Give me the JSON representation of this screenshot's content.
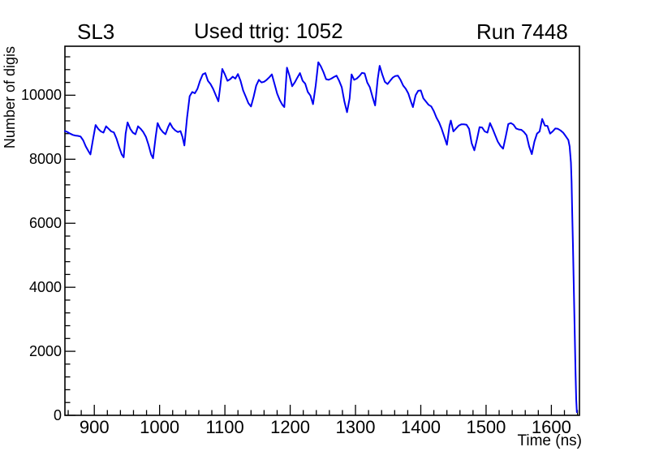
{
  "titles": {
    "left": "SL3",
    "center": "Used ttrig: 1052",
    "right": "Run 7448"
  },
  "chart_data": {
    "type": "line",
    "title": "Used ttrig: 1052",
    "subtitle_left": "SL3",
    "subtitle_right": "Run 7448",
    "xlabel": "Time (ns)",
    "ylabel": "Number of digis",
    "xlim": [
      855,
      1643
    ],
    "ylim": [
      0,
      11530
    ],
    "grid": false,
    "legend": "none",
    "x_major_ticks": [
      900,
      1000,
      1100,
      1200,
      1300,
      1400,
      1500,
      1600
    ],
    "x_major_every": 100,
    "x_minor_step": 20,
    "y_major_ticks": [
      0,
      2000,
      4000,
      6000,
      8000,
      10000
    ],
    "y_major_every": 2000,
    "y_minor_step": 400,
    "line_color": "#0000f2",
    "frame_color": "#000000",
    "series": [
      {
        "name": "number-of-digis-vs-time",
        "points": [
          [
            855,
            8880
          ],
          [
            859,
            8850
          ],
          [
            863,
            8800
          ],
          [
            867,
            8760
          ],
          [
            871,
            8740
          ],
          [
            875,
            8730
          ],
          [
            879,
            8710
          ],
          [
            883,
            8590
          ],
          [
            887,
            8400
          ],
          [
            891,
            8250
          ],
          [
            894,
            8150
          ],
          [
            898,
            8620
          ],
          [
            902,
            9070
          ],
          [
            906,
            8950
          ],
          [
            910,
            8870
          ],
          [
            914,
            8830
          ],
          [
            918,
            9030
          ],
          [
            922,
            8950
          ],
          [
            926,
            8870
          ],
          [
            930,
            8840
          ],
          [
            934,
            8640
          ],
          [
            938,
            8380
          ],
          [
            942,
            8150
          ],
          [
            945,
            8060
          ],
          [
            948,
            8800
          ],
          [
            951,
            9150
          ],
          [
            955,
            8950
          ],
          [
            959,
            8830
          ],
          [
            963,
            8780
          ],
          [
            967,
            9030
          ],
          [
            971,
            8950
          ],
          [
            975,
            8850
          ],
          [
            979,
            8700
          ],
          [
            983,
            8450
          ],
          [
            987,
            8150
          ],
          [
            990,
            8030
          ],
          [
            994,
            8700
          ],
          [
            997,
            9130
          ],
          [
            1001,
            8950
          ],
          [
            1005,
            8850
          ],
          [
            1009,
            8780
          ],
          [
            1013,
            9000
          ],
          [
            1016,
            9130
          ],
          [
            1020,
            8980
          ],
          [
            1024,
            8900
          ],
          [
            1028,
            8850
          ],
          [
            1032,
            8880
          ],
          [
            1035,
            8700
          ],
          [
            1038,
            8430
          ],
          [
            1042,
            9300
          ],
          [
            1046,
            9970
          ],
          [
            1050,
            10100
          ],
          [
            1054,
            10060
          ],
          [
            1058,
            10200
          ],
          [
            1062,
            10450
          ],
          [
            1066,
            10650
          ],
          [
            1070,
            10690
          ],
          [
            1074,
            10450
          ],
          [
            1078,
            10350
          ],
          [
            1082,
            10200
          ],
          [
            1086,
            10000
          ],
          [
            1090,
            9810
          ],
          [
            1093,
            10300
          ],
          [
            1096,
            10820
          ],
          [
            1100,
            10650
          ],
          [
            1104,
            10450
          ],
          [
            1108,
            10500
          ],
          [
            1112,
            10580
          ],
          [
            1116,
            10520
          ],
          [
            1120,
            10660
          ],
          [
            1124,
            10450
          ],
          [
            1128,
            10150
          ],
          [
            1132,
            9950
          ],
          [
            1136,
            9750
          ],
          [
            1140,
            9650
          ],
          [
            1144,
            9950
          ],
          [
            1148,
            10300
          ],
          [
            1152,
            10480
          ],
          [
            1156,
            10400
          ],
          [
            1160,
            10420
          ],
          [
            1164,
            10480
          ],
          [
            1168,
            10560
          ],
          [
            1172,
            10650
          ],
          [
            1176,
            10350
          ],
          [
            1180,
            10050
          ],
          [
            1184,
            9850
          ],
          [
            1188,
            9700
          ],
          [
            1191,
            9630
          ],
          [
            1195,
            10860
          ],
          [
            1199,
            10600
          ],
          [
            1203,
            10280
          ],
          [
            1207,
            10400
          ],
          [
            1211,
            10550
          ],
          [
            1215,
            10690
          ],
          [
            1219,
            10450
          ],
          [
            1223,
            10360
          ],
          [
            1227,
            10100
          ],
          [
            1231,
            9990
          ],
          [
            1235,
            9720
          ],
          [
            1239,
            10300
          ],
          [
            1243,
            11030
          ],
          [
            1247,
            10900
          ],
          [
            1251,
            10720
          ],
          [
            1255,
            10500
          ],
          [
            1259,
            10480
          ],
          [
            1263,
            10520
          ],
          [
            1267,
            10570
          ],
          [
            1271,
            10610
          ],
          [
            1275,
            10450
          ],
          [
            1279,
            10250
          ],
          [
            1283,
            9800
          ],
          [
            1287,
            9470
          ],
          [
            1291,
            9900
          ],
          [
            1294,
            10650
          ],
          [
            1298,
            10480
          ],
          [
            1302,
            10520
          ],
          [
            1306,
            10600
          ],
          [
            1310,
            10700
          ],
          [
            1314,
            10680
          ],
          [
            1318,
            10400
          ],
          [
            1322,
            10250
          ],
          [
            1326,
            9950
          ],
          [
            1330,
            9680
          ],
          [
            1334,
            10500
          ],
          [
            1337,
            10920
          ],
          [
            1341,
            10650
          ],
          [
            1345,
            10420
          ],
          [
            1349,
            10350
          ],
          [
            1353,
            10450
          ],
          [
            1357,
            10550
          ],
          [
            1361,
            10600
          ],
          [
            1365,
            10610
          ],
          [
            1369,
            10480
          ],
          [
            1373,
            10300
          ],
          [
            1377,
            10200
          ],
          [
            1381,
            10050
          ],
          [
            1385,
            9800
          ],
          [
            1388,
            9630
          ],
          [
            1392,
            10000
          ],
          [
            1396,
            10140
          ],
          [
            1400,
            10150
          ],
          [
            1404,
            9900
          ],
          [
            1408,
            9800
          ],
          [
            1412,
            9700
          ],
          [
            1416,
            9650
          ],
          [
            1420,
            9500
          ],
          [
            1424,
            9300
          ],
          [
            1428,
            9150
          ],
          [
            1432,
            8950
          ],
          [
            1436,
            8700
          ],
          [
            1440,
            8450
          ],
          [
            1444,
            9050
          ],
          [
            1446,
            9210
          ],
          [
            1450,
            8870
          ],
          [
            1454,
            8960
          ],
          [
            1458,
            9050
          ],
          [
            1462,
            9090
          ],
          [
            1466,
            9090
          ],
          [
            1470,
            9080
          ],
          [
            1474,
            8950
          ],
          [
            1478,
            8500
          ],
          [
            1482,
            8280
          ],
          [
            1486,
            8620
          ],
          [
            1490,
            9000
          ],
          [
            1494,
            8990
          ],
          [
            1498,
            8870
          ],
          [
            1502,
            8830
          ],
          [
            1506,
            9130
          ],
          [
            1510,
            8950
          ],
          [
            1514,
            8750
          ],
          [
            1518,
            8550
          ],
          [
            1522,
            8420
          ],
          [
            1526,
            8330
          ],
          [
            1530,
            8700
          ],
          [
            1534,
            9100
          ],
          [
            1538,
            9130
          ],
          [
            1542,
            9080
          ],
          [
            1546,
            8960
          ],
          [
            1550,
            8930
          ],
          [
            1554,
            8920
          ],
          [
            1558,
            8850
          ],
          [
            1562,
            8750
          ],
          [
            1566,
            8400
          ],
          [
            1570,
            8160
          ],
          [
            1574,
            8550
          ],
          [
            1578,
            8800
          ],
          [
            1582,
            8870
          ],
          [
            1586,
            9260
          ],
          [
            1590,
            9050
          ],
          [
            1594,
            9040
          ],
          [
            1598,
            8800
          ],
          [
            1602,
            8870
          ],
          [
            1606,
            8960
          ],
          [
            1610,
            8950
          ],
          [
            1614,
            8900
          ],
          [
            1618,
            8830
          ],
          [
            1622,
            8720
          ],
          [
            1626,
            8600
          ],
          [
            1628,
            8400
          ],
          [
            1630,
            7900
          ],
          [
            1631,
            7300
          ],
          [
            1632,
            6300
          ],
          [
            1633,
            5300
          ],
          [
            1634,
            4300
          ],
          [
            1635,
            3300
          ],
          [
            1636,
            2300
          ],
          [
            1637,
            1300
          ],
          [
            1638,
            500
          ],
          [
            1639,
            100
          ]
        ]
      }
    ]
  }
}
